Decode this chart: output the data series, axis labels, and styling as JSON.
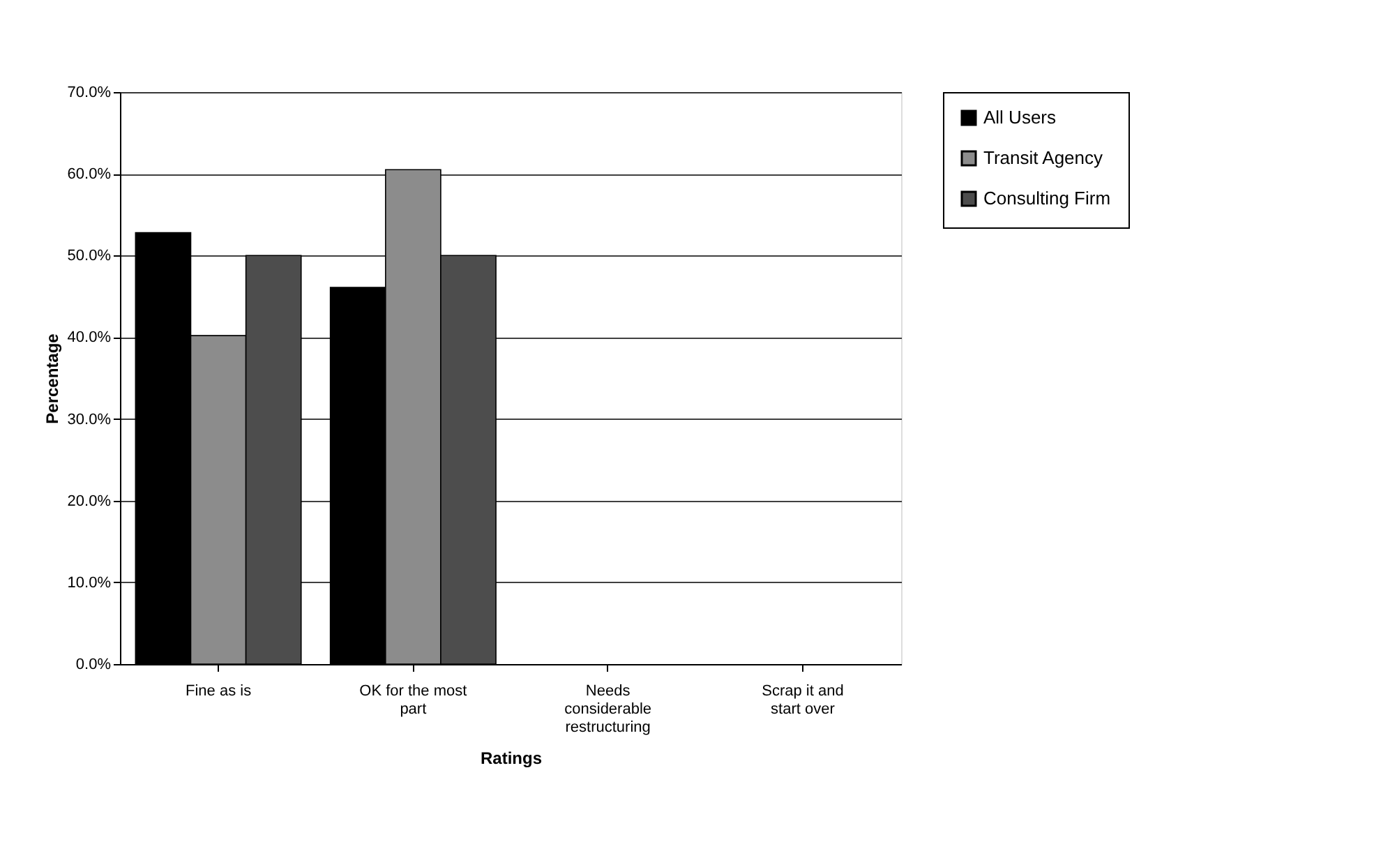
{
  "chart_data": {
    "type": "bar",
    "xlabel": "Ratings",
    "ylabel": "Percentage",
    "categories": [
      "Fine as is",
      "OK for the most part",
      "Needs considerable restructuring",
      "Scrap it and start over"
    ],
    "series": [
      {
        "name": "All Users",
        "color": "#000000",
        "values": [
          52.8,
          46.1,
          0,
          0
        ]
      },
      {
        "name": "Transit Agency",
        "color": "#8c8c8c",
        "values": [
          40.2,
          60.5,
          0,
          0
        ]
      },
      {
        "name": "Consulting Firm",
        "color": "#4d4d4d",
        "values": [
          50.0,
          50.0,
          0,
          0
        ]
      }
    ],
    "ylim": [
      0,
      70
    ],
    "yticks": [
      {
        "value": 0,
        "label": "0.0%"
      },
      {
        "value": 10,
        "label": "10.0%"
      },
      {
        "value": 20,
        "label": "20.0%"
      },
      {
        "value": 30,
        "label": "30.0%"
      },
      {
        "value": 40,
        "label": "40.0%"
      },
      {
        "value": 50,
        "label": "50.0%"
      },
      {
        "value": 60,
        "label": "60.0%"
      },
      {
        "value": 70,
        "label": "70.0%"
      }
    ],
    "grid": "y",
    "legend": "right"
  }
}
